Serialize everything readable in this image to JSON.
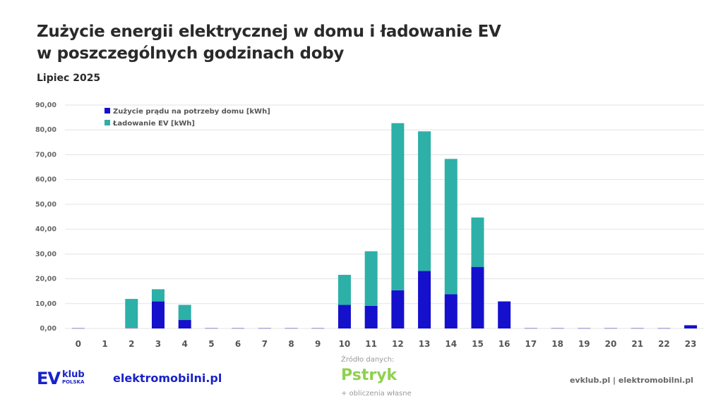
{
  "chart_data": {
    "type": "bar",
    "stacked": true,
    "title": "Zużycie energii elektrycznej w domu i ładowanie EV w poszczególnych godzinach doby",
    "title_lines": [
      "Zużycie energii elektrycznej w domu i ładowanie EV",
      "w poszczególnych godzinach doby"
    ],
    "subtitle": "Lipiec 2025",
    "categories": [
      "0",
      "1",
      "2",
      "3",
      "4",
      "5",
      "6",
      "7",
      "8",
      "9",
      "10",
      "11",
      "12",
      "13",
      "14",
      "15",
      "16",
      "17",
      "18",
      "19",
      "20",
      "21",
      "22",
      "23"
    ],
    "series": [
      {
        "name": "Zużycie prądu na potrzeby domu [kWh]",
        "color": "#1410cc",
        "values": [
          0.2,
          0,
          0.3,
          10.9,
          3.4,
          0.2,
          0.2,
          0.2,
          0.2,
          0.2,
          9.5,
          9.1,
          15.4,
          23.2,
          13.8,
          24.8,
          10.9,
          0.2,
          0.2,
          0.2,
          0.2,
          0.2,
          0.2,
          1.3
        ]
      },
      {
        "name": "Ładowanie EV [kWh]",
        "color": "#2cb0a8",
        "values": [
          0,
          0,
          11.6,
          4.9,
          6.1,
          0,
          0,
          0,
          0,
          0,
          12.1,
          22.0,
          67.3,
          56.2,
          54.5,
          19.9,
          0,
          0,
          0,
          0,
          0,
          0,
          0,
          0
        ]
      }
    ],
    "yticks": [
      "0,00",
      "10,00",
      "20,00",
      "30,00",
      "40,00",
      "50,00",
      "60,00",
      "70,00",
      "80,00",
      "90,00"
    ],
    "ylim": [
      0,
      90
    ],
    "grid": true,
    "legend": "top-left"
  },
  "footer": {
    "logo_ev": "EV",
    "logo_klub": "klub",
    "logo_polska": "POLSKA",
    "logo_elektromobilni": "elektromobilni.pl",
    "source_label": "Źródło danych:",
    "source_name": "Pstryk",
    "source_note": "+ obliczenia własne",
    "links": "evklub.pl | elektromobilni.pl"
  }
}
